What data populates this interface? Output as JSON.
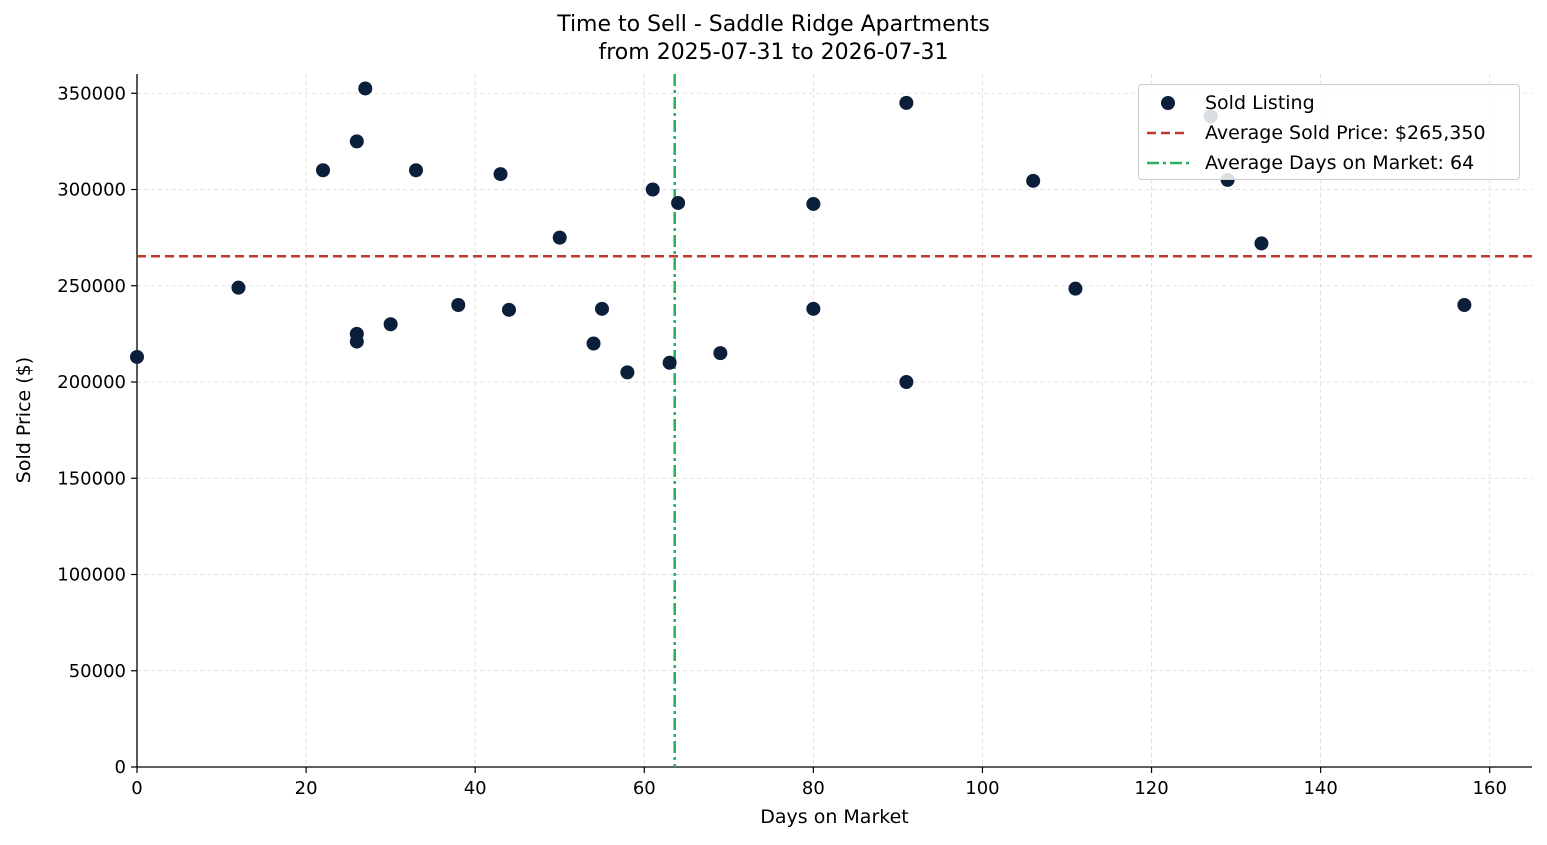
{
  "chart_data": {
    "type": "scatter",
    "title": "Time to Sell - Saddle Ridge Apartments",
    "subtitle": "from 2025-07-31 to 2026-07-31",
    "xlabel": "Days on Market",
    "ylabel": "Sold Price ($)",
    "xlim": [
      0,
      165
    ],
    "ylim": [
      0,
      360000
    ],
    "xticks": [
      0,
      20,
      40,
      60,
      80,
      100,
      120,
      140,
      160
    ],
    "yticks": [
      0,
      50000,
      100000,
      150000,
      200000,
      250000,
      300000,
      350000
    ],
    "grid": true,
    "legend_position": "top-right",
    "series": [
      {
        "name": "Sold Listing",
        "color": "#0b1f3a",
        "points": [
          {
            "x": 0,
            "y": 213000
          },
          {
            "x": 12,
            "y": 249000
          },
          {
            "x": 22,
            "y": 310000
          },
          {
            "x": 26,
            "y": 325000
          },
          {
            "x": 26,
            "y": 225000
          },
          {
            "x": 26,
            "y": 221000
          },
          {
            "x": 27,
            "y": 352500
          },
          {
            "x": 30,
            "y": 230000
          },
          {
            "x": 33,
            "y": 310000
          },
          {
            "x": 38,
            "y": 240000
          },
          {
            "x": 43,
            "y": 308000
          },
          {
            "x": 44,
            "y": 237500
          },
          {
            "x": 50,
            "y": 275000
          },
          {
            "x": 54,
            "y": 220000
          },
          {
            "x": 55,
            "y": 238000
          },
          {
            "x": 58,
            "y": 205000
          },
          {
            "x": 61,
            "y": 300000
          },
          {
            "x": 63,
            "y": 210000
          },
          {
            "x": 64,
            "y": 293000
          },
          {
            "x": 69,
            "y": 215000
          },
          {
            "x": 80,
            "y": 292500
          },
          {
            "x": 80,
            "y": 238000
          },
          {
            "x": 91,
            "y": 345000
          },
          {
            "x": 91,
            "y": 200000
          },
          {
            "x": 106,
            "y": 304500
          },
          {
            "x": 111,
            "y": 248500
          },
          {
            "x": 127,
            "y": 338000
          },
          {
            "x": 129,
            "y": 305000
          },
          {
            "x": 133,
            "y": 272000
          },
          {
            "x": 157,
            "y": 240000
          }
        ]
      }
    ],
    "reference_lines": [
      {
        "name": "Average Sold Price: $265,350",
        "orientation": "horizontal",
        "value": 265350,
        "color": "#c0392b",
        "style": "dashed"
      },
      {
        "name": "Average Days on Market: 64",
        "orientation": "vertical",
        "value": 63.6,
        "color": "#27ae60",
        "style": "dashdot"
      }
    ]
  }
}
